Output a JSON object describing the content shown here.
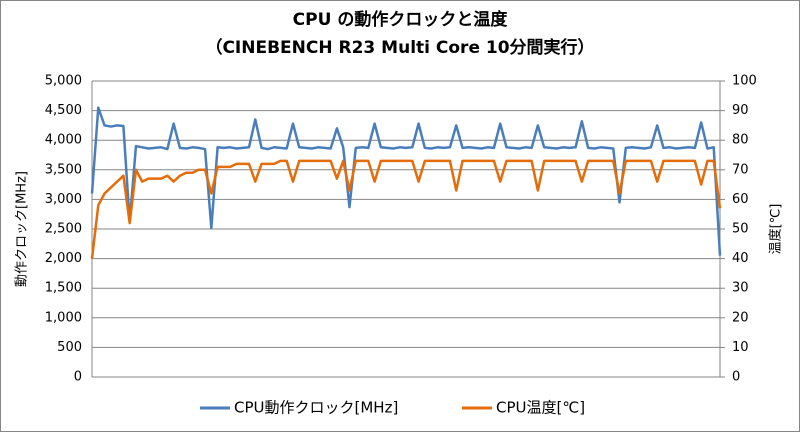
{
  "chart_data": {
    "type": "line",
    "title": "CPU の動作クロックと温度",
    "subtitle": "（CINEBENCH R23 Multi Core 10分間実行）",
    "y_label": "動作クロック[MHz]",
    "y2_label": "温度[℃]",
    "categories": [
      null,
      null,
      null,
      null,
      null,
      null,
      null,
      null,
      null,
      null,
      null,
      null,
      null,
      null,
      null,
      null,
      null,
      null,
      null,
      null,
      null,
      null,
      null,
      null,
      null,
      null,
      null,
      null,
      null,
      null,
      null,
      null,
      null,
      null,
      null,
      null,
      null,
      null,
      null,
      null,
      null,
      null,
      null,
      null,
      null,
      null,
      null,
      null,
      null,
      null,
      null,
      null,
      null,
      null,
      null,
      null,
      null,
      null,
      null,
      null,
      null,
      null,
      null,
      null,
      null,
      null,
      null,
      null,
      null,
      null,
      null,
      null,
      null,
      null,
      null,
      null,
      null,
      null,
      null,
      null,
      null,
      null,
      null,
      null,
      null,
      null,
      null,
      null,
      null,
      null,
      null,
      null,
      null,
      null,
      null,
      null,
      null,
      null,
      null,
      null,
      null
    ],
    "series": [
      {
        "name": "CPU動作クロック[MHz]",
        "color": "#4a7ebb",
        "axis": "y",
        "values": [
          3100,
          4550,
          4250,
          4230,
          4250,
          4240,
          2620,
          3900,
          3880,
          3860,
          3870,
          3880,
          3850,
          4280,
          3870,
          3860,
          3880,
          3870,
          3850,
          2520,
          3880,
          3870,
          3880,
          3860,
          3870,
          3880,
          4350,
          3870,
          3850,
          3880,
          3870,
          3860,
          4280,
          3880,
          3870,
          3860,
          3880,
          3870,
          3860,
          4200,
          3880,
          2870,
          3870,
          3880,
          3870,
          4280,
          3880,
          3870,
          3860,
          3880,
          3870,
          3880,
          4280,
          3870,
          3860,
          3880,
          3870,
          3880,
          4250,
          3870,
          3880,
          3870,
          3860,
          3880,
          3870,
          4280,
          3880,
          3870,
          3860,
          3880,
          3870,
          4250,
          3880,
          3870,
          3860,
          3880,
          3870,
          3880,
          4320,
          3870,
          3860,
          3880,
          3870,
          3860,
          2950,
          3870,
          3880,
          3870,
          3860,
          3880,
          4250,
          3870,
          3880,
          3860,
          3870,
          3880,
          3870,
          4300,
          3860,
          3880,
          2050
        ]
      },
      {
        "name": "CPU温度[℃]",
        "color": "#e46c0a",
        "axis": "y2",
        "values": [
          40,
          58,
          62,
          64,
          66,
          68,
          52,
          70,
          66,
          67,
          67,
          67,
          68,
          66,
          68,
          69,
          69,
          70,
          70,
          62,
          71,
          71,
          71,
          72,
          72,
          72,
          66,
          72,
          72,
          72,
          73,
          73,
          66,
          73,
          73,
          73,
          73,
          73,
          73,
          67,
          73,
          63,
          73,
          73,
          73,
          66,
          73,
          73,
          73,
          73,
          73,
          73,
          66,
          73,
          73,
          73,
          73,
          73,
          63,
          73,
          73,
          73,
          73,
          73,
          73,
          66,
          73,
          73,
          73,
          73,
          73,
          63,
          73,
          73,
          73,
          73,
          73,
          73,
          66,
          73,
          73,
          73,
          73,
          73,
          62,
          73,
          73,
          73,
          73,
          73,
          66,
          73,
          73,
          73,
          73,
          73,
          73,
          65,
          73,
          73,
          57
        ]
      }
    ],
    "ylim": [
      0,
      5000
    ],
    "yticks": [
      {
        "value": 0,
        "label": "0"
      },
      {
        "value": 500,
        "label": "500"
      },
      {
        "value": 1000,
        "label": "1,000"
      },
      {
        "value": 1500,
        "label": "1,500"
      },
      {
        "value": 2000,
        "label": "2,000"
      },
      {
        "value": 2500,
        "label": "2,500"
      },
      {
        "value": 3000,
        "label": "3,000"
      },
      {
        "value": 3500,
        "label": "3,500"
      },
      {
        "value": 4000,
        "label": "4,000"
      },
      {
        "value": 4500,
        "label": "4,500"
      },
      {
        "value": 5000,
        "label": "5,000"
      }
    ],
    "y2lim": [
      0,
      100
    ],
    "y2ticks": [
      0,
      10,
      20,
      30,
      40,
      50,
      60,
      70,
      80,
      90,
      100
    ],
    "grid": true,
    "legend": "bottom"
  }
}
